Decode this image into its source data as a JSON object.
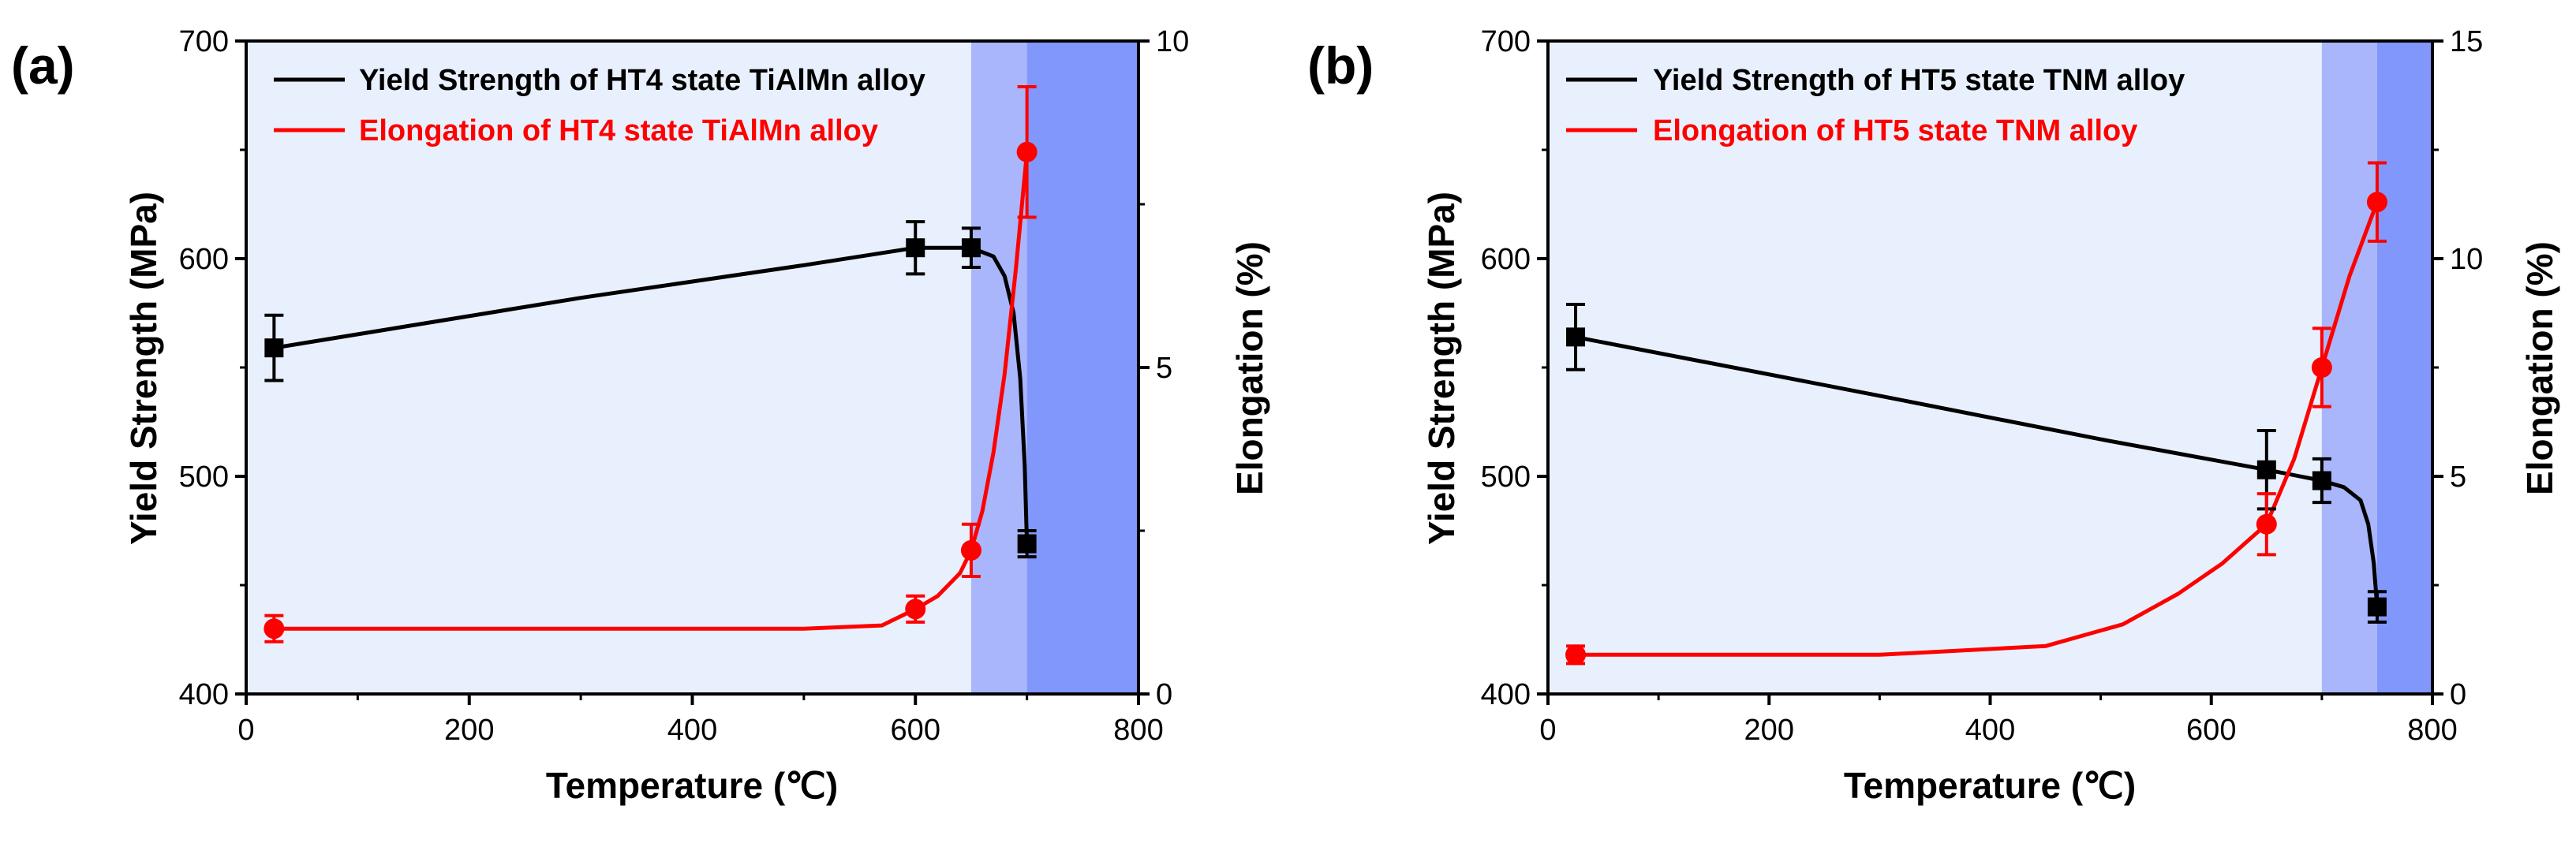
{
  "chart_data": [
    {
      "panel_label": "(a)",
      "type": "line",
      "xlabel": "Temperature (℃)",
      "ylabel_left": "Yield Strength (MPa)",
      "ylabel_right": "Elongation (%)",
      "xlim": [
        0,
        800
      ],
      "ylim_left": [
        400,
        700
      ],
      "ylim_right": [
        0,
        10
      ],
      "x_ticks": [
        "0",
        "200",
        "400",
        "600",
        "800"
      ],
      "y_left_ticks": [
        "400",
        "500",
        "600",
        "700"
      ],
      "y_right_ticks": [
        "0",
        "5",
        "10"
      ],
      "shaded_regions": [
        {
          "x_from": 650,
          "x_to": 700,
          "color": "#a9b6fb"
        },
        {
          "x_from": 700,
          "x_to": 800,
          "color": "#8197fb"
        }
      ],
      "background_color": "#e9f0fd",
      "series": [
        {
          "name": "Yield Strength of HT4 state TiAlMn alloy",
          "axis": "left",
          "color": "#000000",
          "marker": "square",
          "x": [
            25,
            600,
            650,
            700
          ],
          "y": [
            559,
            605,
            605,
            469
          ],
          "err": [
            15,
            12,
            9,
            6
          ],
          "curve": [
            [
              25,
              559
            ],
            [
              300,
              582
            ],
            [
              500,
              597
            ],
            [
              600,
              605
            ],
            [
              650,
              605
            ],
            [
              670,
              601
            ],
            [
              680,
              592
            ],
            [
              688,
              575
            ],
            [
              694,
              545
            ],
            [
              698,
              505
            ],
            [
              700,
              469
            ]
          ]
        },
        {
          "name": "Elongation of HT4 state TiAlMn alloy",
          "axis": "right",
          "color": "#ff0000",
          "marker": "circle",
          "x": [
            25,
            600,
            650,
            700
          ],
          "y": [
            1.0,
            1.3,
            2.2,
            8.3
          ],
          "err": [
            0.2,
            0.2,
            0.4,
            1.0
          ],
          "curve": [
            [
              25,
              1.0
            ],
            [
              300,
              1.0
            ],
            [
              500,
              1.0
            ],
            [
              570,
              1.05
            ],
            [
              600,
              1.3
            ],
            [
              620,
              1.5
            ],
            [
              640,
              1.85
            ],
            [
              650,
              2.2
            ],
            [
              660,
              2.8
            ],
            [
              670,
              3.7
            ],
            [
              680,
              4.9
            ],
            [
              690,
              6.5
            ],
            [
              700,
              8.3
            ]
          ]
        }
      ]
    },
    {
      "panel_label": "(b)",
      "type": "line",
      "xlabel": "Temperature (℃)",
      "ylabel_left": "Yield Strength (MPa)",
      "ylabel_right": "Elongation (%)",
      "xlim": [
        0,
        800
      ],
      "ylim_left": [
        400,
        700
      ],
      "ylim_right": [
        0,
        15
      ],
      "x_ticks": [
        "0",
        "200",
        "400",
        "600",
        "800"
      ],
      "y_left_ticks": [
        "400",
        "500",
        "600",
        "700"
      ],
      "y_right_ticks": [
        "0",
        "5",
        "10",
        "15"
      ],
      "shaded_regions": [
        {
          "x_from": 700,
          "x_to": 750,
          "color": "#a9b6fb"
        },
        {
          "x_from": 750,
          "x_to": 800,
          "color": "#8197fb"
        }
      ],
      "background_color": "#e9f0fd",
      "series": [
        {
          "name": "Yield Strength of HT5 state TNM alloy",
          "axis": "left",
          "color": "#000000",
          "marker": "square",
          "x": [
            25,
            650,
            700,
            750
          ],
          "y": [
            564,
            503,
            498,
            440
          ],
          "err": [
            15,
            18,
            10,
            7
          ],
          "curve": [
            [
              25,
              564
            ],
            [
              300,
              537
            ],
            [
              500,
              517
            ],
            [
              650,
              503
            ],
            [
              700,
              498
            ],
            [
              720,
              495
            ],
            [
              735,
              489
            ],
            [
              742,
              478
            ],
            [
              747,
              460
            ],
            [
              750,
              440
            ]
          ]
        },
        {
          "name": "Elongation of  HT5 state TNM alloy",
          "axis": "right",
          "color": "#ff0000",
          "marker": "circle",
          "x": [
            25,
            650,
            700,
            750
          ],
          "y": [
            0.9,
            3.9,
            7.5,
            11.3
          ],
          "err": [
            0.2,
            0.7,
            0.9,
            0.9
          ],
          "curve": [
            [
              25,
              0.9
            ],
            [
              300,
              0.9
            ],
            [
              450,
              1.1
            ],
            [
              520,
              1.6
            ],
            [
              570,
              2.3
            ],
            [
              610,
              3.0
            ],
            [
              650,
              3.9
            ],
            [
              675,
              5.4
            ],
            [
              700,
              7.5
            ],
            [
              725,
              9.6
            ],
            [
              750,
              11.3
            ]
          ]
        }
      ]
    }
  ]
}
